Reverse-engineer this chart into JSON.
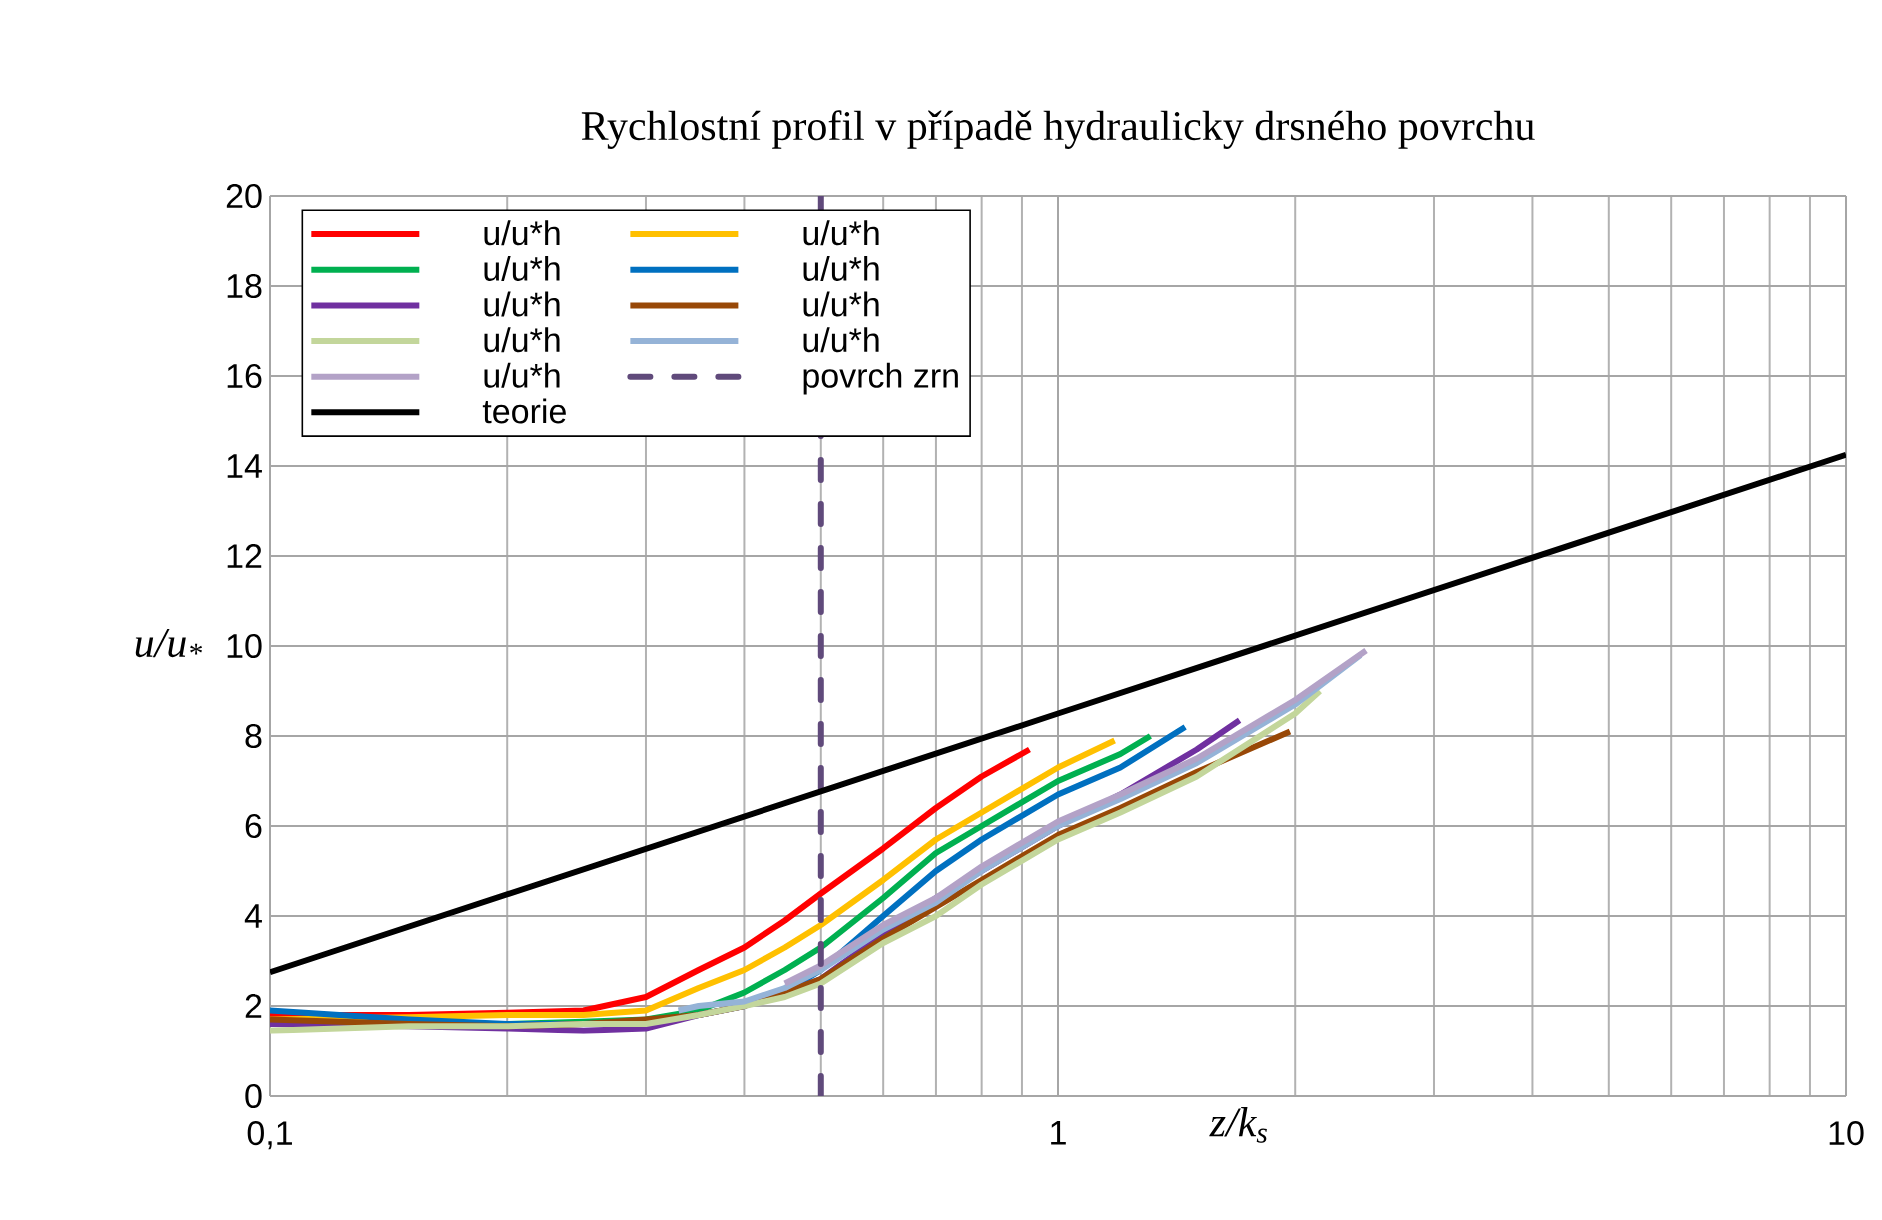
{
  "chart_data": {
    "type": "line",
    "title": "Rychlostní profil v případě hydraulicky drsného povrchu",
    "xlabel": "z/k$_{s}$",
    "ylabel": "u/u$_{*}$",
    "log": "x",
    "grid": true,
    "legend": "top left",
    "marker": "none",
    "line_style": "solid",
    "xlim": [
      0.1,
      10
    ],
    "xticks": [
      {
        "value": 0.1,
        "label": "0,1"
      },
      1,
      10
    ],
    "ylim": [
      0,
      20
    ],
    "yticks": [
      0,
      2,
      4,
      6,
      8,
      10,
      12,
      14,
      16,
      18,
      20
    ],
    "series": [
      {
        "name": "u/u*h",
        "color": "#ff0000",
        "x": [
          0.1,
          0.15,
          0.2,
          0.25,
          0.3,
          0.35,
          0.4,
          0.45,
          0.5,
          0.6,
          0.7,
          0.8,
          0.92
        ],
        "values": [
          1.8,
          1.8,
          1.85,
          1.9,
          2.2,
          2.8,
          3.3,
          3.9,
          4.5,
          5.5,
          6.4,
          7.1,
          7.7
        ]
      },
      {
        "name": "u/u*h",
        "color": "#ffc000",
        "x": [
          0.1,
          0.15,
          0.2,
          0.25,
          0.3,
          0.35,
          0.4,
          0.45,
          0.5,
          0.6,
          0.7,
          0.8,
          1.0,
          1.18
        ],
        "values": [
          1.7,
          1.75,
          1.8,
          1.8,
          1.9,
          2.4,
          2.8,
          3.3,
          3.8,
          4.8,
          5.7,
          6.3,
          7.3,
          7.9
        ]
      },
      {
        "name": "u/u*h",
        "color": "#00b050",
        "x": [
          0.1,
          0.15,
          0.2,
          0.25,
          0.3,
          0.35,
          0.4,
          0.45,
          0.5,
          0.6,
          0.7,
          0.8,
          1.0,
          1.2,
          1.31
        ],
        "values": [
          1.6,
          1.6,
          1.6,
          1.65,
          1.7,
          1.9,
          2.3,
          2.8,
          3.3,
          4.4,
          5.4,
          6.0,
          7.0,
          7.6,
          8.0
        ]
      },
      {
        "name": "u/u*h",
        "color": "#0070c0",
        "x": [
          0.1,
          0.15,
          0.2,
          0.25,
          0.3,
          0.35,
          0.4,
          0.45,
          0.5,
          0.6,
          0.7,
          0.8,
          1.0,
          1.2,
          1.45
        ],
        "values": [
          1.9,
          1.7,
          1.6,
          1.6,
          1.65,
          1.8,
          2.0,
          2.3,
          2.8,
          4.0,
          5.0,
          5.7,
          6.7,
          7.3,
          8.2
        ]
      },
      {
        "name": "u/u*h",
        "color": "#7030a0",
        "x": [
          0.1,
          0.15,
          0.2,
          0.25,
          0.3,
          0.35,
          0.4,
          0.45,
          0.5,
          0.6,
          0.7,
          0.8,
          1.0,
          1.2,
          1.5,
          1.7
        ],
        "values": [
          1.6,
          1.55,
          1.5,
          1.45,
          1.5,
          1.8,
          2.0,
          2.3,
          2.6,
          3.6,
          4.4,
          5.0,
          6.0,
          6.7,
          7.7,
          8.35
        ]
      },
      {
        "name": "u/u*h",
        "color": "#984807",
        "x": [
          0.1,
          0.15,
          0.2,
          0.25,
          0.3,
          0.35,
          0.4,
          0.45,
          0.5,
          0.6,
          0.7,
          0.8,
          1.0,
          1.2,
          1.5,
          1.97
        ],
        "values": [
          1.7,
          1.6,
          1.55,
          1.6,
          1.7,
          1.8,
          2.0,
          2.3,
          2.6,
          3.5,
          4.2,
          4.8,
          5.8,
          6.4,
          7.2,
          8.1
        ]
      },
      {
        "name": "u/u*h",
        "color": "#c3d69b",
        "x": [
          0.1,
          0.15,
          0.2,
          0.25,
          0.3,
          0.35,
          0.4,
          0.45,
          0.5,
          0.6,
          0.7,
          0.8,
          1.0,
          1.2,
          1.5,
          2.0,
          2.15
        ],
        "values": [
          1.45,
          1.55,
          1.55,
          1.6,
          1.6,
          1.8,
          2.0,
          2.2,
          2.5,
          3.4,
          4.0,
          4.7,
          5.7,
          6.3,
          7.1,
          8.5,
          9.0
        ]
      },
      {
        "name": "u/u*h",
        "color": "#95b3d7",
        "x": [
          0.33,
          0.35,
          0.4,
          0.45,
          0.5,
          0.6,
          0.7,
          0.8,
          1.0,
          1.2,
          1.5,
          2.0,
          2.42
        ],
        "values": [
          1.9,
          2.0,
          2.1,
          2.4,
          2.8,
          3.7,
          4.3,
          5.0,
          6.0,
          6.6,
          7.4,
          8.7,
          9.8
        ]
      },
      {
        "name": "u/u*h",
        "color": "#b3a2c7",
        "x": [
          0.45,
          0.5,
          0.6,
          0.7,
          0.8,
          1.0,
          1.2,
          1.5,
          2.0,
          2.46
        ],
        "values": [
          2.5,
          2.9,
          3.8,
          4.4,
          5.1,
          6.1,
          6.7,
          7.5,
          8.8,
          9.9
        ]
      },
      {
        "name": "povrch zrn",
        "color": "#604a7b",
        "line_style": "dashed",
        "x": [
          0.5,
          0.5
        ],
        "values": [
          0,
          20
        ]
      },
      {
        "name": "teorie",
        "color": "#000000",
        "x": [
          0.1,
          1,
          10
        ],
        "values": [
          2.75,
          8.5,
          14.25
        ]
      }
    ]
  }
}
